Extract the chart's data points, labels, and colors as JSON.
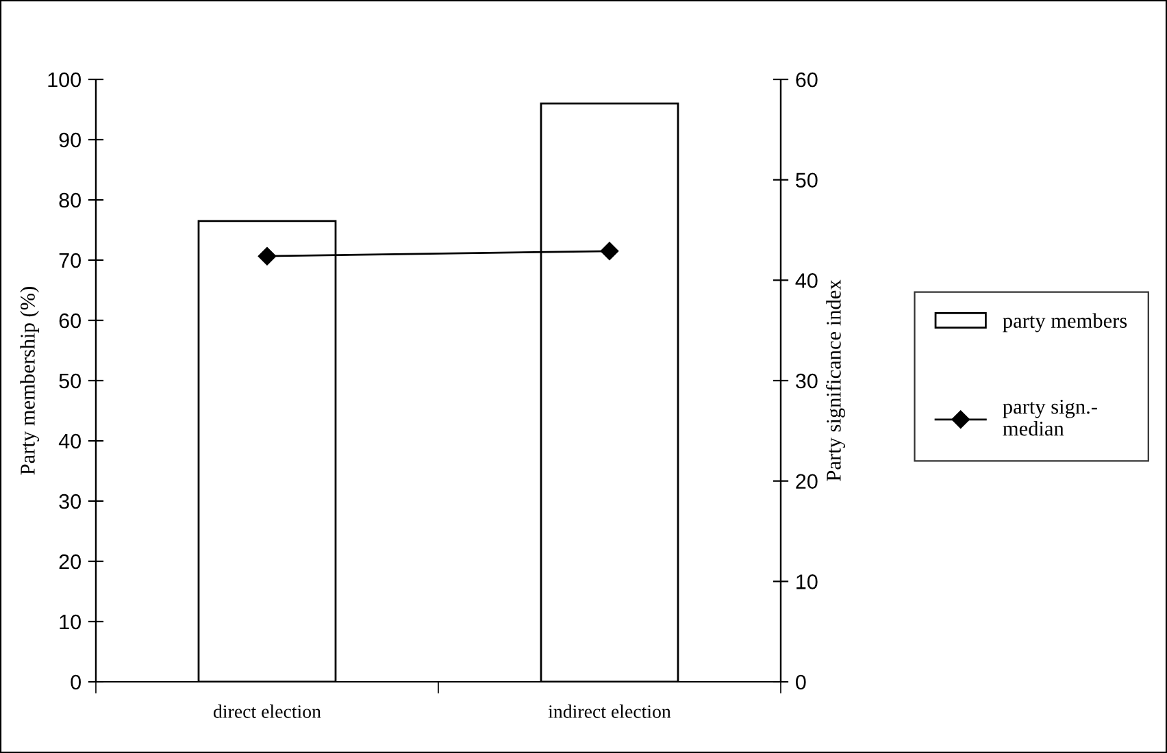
{
  "chart_data": {
    "type": "bar",
    "categories": [
      "direct election",
      "indirect election"
    ],
    "ylabel": "Party membership (%)",
    "y2label": "Party significance index",
    "ylim": [
      0,
      100
    ],
    "yticks": [
      0,
      10,
      20,
      30,
      40,
      50,
      60,
      70,
      80,
      90,
      100
    ],
    "y2lim": [
      0,
      60
    ],
    "y2ticks": [
      0,
      10,
      20,
      30,
      40,
      50,
      60
    ],
    "series": [
      {
        "name": "party members",
        "color": "#ffffff",
        "values": [
          76.5,
          96
        ]
      },
      {
        "name": "party sign.-\nmedian",
        "type": "line",
        "axis": "y2",
        "color": "#000000",
        "marker": "diamond",
        "values": [
          42.4,
          42.9
        ]
      }
    ],
    "legend": "right",
    "grid": false
  }
}
